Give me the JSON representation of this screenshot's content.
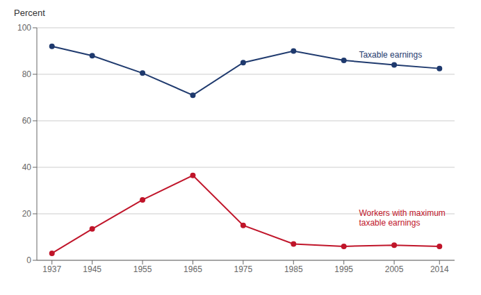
{
  "chart_data": {
    "type": "line",
    "y_label": "Percent",
    "x": [
      1937,
      1945,
      1955,
      1965,
      1975,
      1985,
      1995,
      2005,
      2014
    ],
    "series": [
      {
        "color": "#1f3a6e",
        "marker": "circle",
        "values": [
          92,
          88,
          80.5,
          71,
          85,
          90,
          86,
          84,
          82.5
        ]
      },
      {
        "color": "#c0152a",
        "marker": "circle",
        "values": [
          3,
          13.5,
          26,
          36.5,
          15,
          7,
          6,
          6.5,
          6
        ]
      }
    ],
    "xlim": [
      1934,
      2017
    ],
    "xticks": [
      1937,
      1945,
      1955,
      1965,
      1975,
      1985,
      1995,
      2005,
      2014
    ],
    "ylim": [
      0,
      100
    ],
    "yticks": [
      0,
      20,
      40,
      60,
      80,
      100
    ],
    "grid": "y",
    "annotations": [
      {
        "text": "Taxable earnings",
        "x": 1998,
        "y": 88,
        "color": "#1f3a6e"
      },
      {
        "text": "Workers with maximum\ntaxable earnings",
        "x": 1998,
        "y": 18,
        "color": "#c0152a"
      }
    ]
  }
}
